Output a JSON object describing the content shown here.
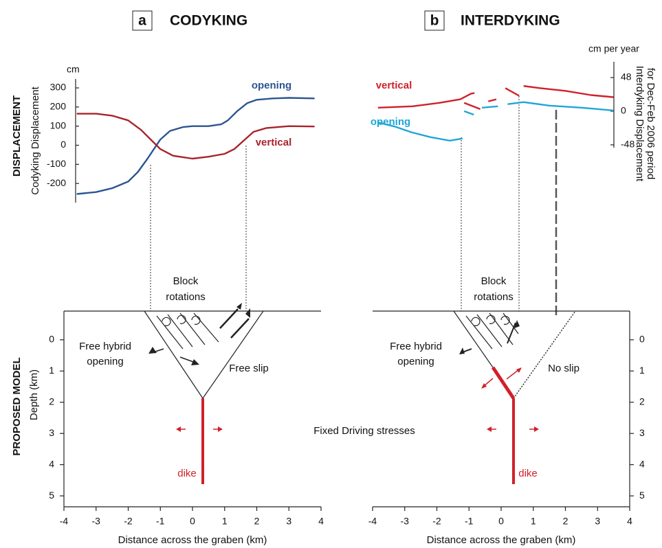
{
  "chart_data": [
    {
      "type": "line",
      "panel": "a",
      "title": "CODYKING",
      "section": "DISPLACEMENT",
      "y_unit": "cm",
      "y_label": "Codyking Displacement",
      "xlim": [
        -4,
        4
      ],
      "ylim": [
        -300,
        300
      ],
      "yticks": [
        300,
        200,
        100,
        0,
        -100,
        -200
      ],
      "series": [
        {
          "name": "opening",
          "color": "#2b5592",
          "x": [
            -3.6,
            -3,
            -2.5,
            -2,
            -1.7,
            -1.4,
            -1.2,
            -1,
            -0.7,
            -0.3,
            0,
            0.5,
            0.9,
            1.1,
            1.4,
            1.7,
            2,
            2.5,
            3,
            3.8
          ],
          "values": [
            -255,
            -245,
            -225,
            -190,
            -140,
            -70,
            -20,
            30,
            75,
            95,
            100,
            100,
            110,
            130,
            180,
            220,
            238,
            245,
            248,
            245
          ]
        },
        {
          "name": "vertical",
          "color": "#a8232b",
          "x": [
            -3.6,
            -3,
            -2.5,
            -2,
            -1.6,
            -1.3,
            -1,
            -0.6,
            0,
            0.5,
            1,
            1.3,
            1.6,
            1.9,
            2.3,
            3,
            3.8
          ],
          "values": [
            165,
            165,
            155,
            130,
            80,
            30,
            -20,
            -55,
            -70,
            -60,
            -45,
            -20,
            25,
            70,
            90,
            100,
            98
          ]
        }
      ]
    },
    {
      "type": "line",
      "panel": "b",
      "title": "INTERDYKING",
      "y_unit": "cm per year",
      "y_label": [
        "Interdyking Displacement",
        "for Dec-Feb 2006 period"
      ],
      "y_side": "right",
      "xlim": [
        -4,
        4
      ],
      "ylim": [
        -52,
        70
      ],
      "yticks": [
        48,
        0,
        -48
      ],
      "series": [
        {
          "name": "vertical",
          "color": "#d0202a",
          "x": [
            -3.83,
            -2.76,
            -1.91,
            -1.27,
            -0.94,
            -0.83,
            null,
            -1.15,
            -0.65,
            null,
            -0.4,
            -0.15,
            null,
            0.13,
            0.56,
            null,
            0.7,
            1.2,
            2,
            2.8,
            3.5
          ],
          "values": [
            5,
            7,
            12,
            17,
            25,
            26,
            null,
            12,
            3,
            null,
            14,
            17,
            null,
            33,
            22,
            null,
            36,
            33,
            29,
            23,
            20
          ]
        },
        {
          "name": "opening",
          "color": "#1fa6d6",
          "x": [
            -3.83,
            -3.3,
            -2.8,
            -2.2,
            -1.6,
            -1.2,
            null,
            -1.15,
            -0.85,
            null,
            -0.6,
            -0.1,
            null,
            0.2,
            0.7,
            1.5,
            2.5,
            3.5
          ],
          "values": [
            -16,
            -22,
            -30,
            -37,
            -42,
            -39,
            null,
            0,
            -5,
            null,
            5,
            7,
            null,
            10,
            13,
            8,
            5,
            1
          ]
        }
      ]
    },
    {
      "type": "diagram",
      "section": "PROPOSED MODEL",
      "y_label": "Depth (km)",
      "x_label": "Distance across the graben (km)",
      "y_side": "left",
      "xlim": [
        -4,
        4
      ],
      "xticks": [
        -4,
        -3,
        -2,
        -1,
        0,
        1,
        2,
        3,
        4
      ],
      "ylim": [
        -0.92,
        5.35
      ],
      "yticks": [
        0,
        1,
        2,
        3,
        4,
        5
      ],
      "annotations": [
        "Block",
        "rotations",
        "Free hybrid",
        "opening",
        "Free slip",
        "dike",
        "Fixed Driving stresses"
      ]
    },
    {
      "type": "diagram",
      "x_label": "Distance across the graben (km)",
      "y_side": "right",
      "xlim": [
        -4,
        4
      ],
      "xticks": [
        -4,
        -3,
        -2,
        -1,
        0,
        1,
        2,
        3,
        4
      ],
      "ylim": [
        -0.92,
        5.35
      ],
      "yticks": [
        0,
        1,
        2,
        3,
        4,
        5
      ],
      "annotations": [
        "Block",
        "rotations",
        "Free hybrid",
        "opening",
        "No slip",
        "dike"
      ]
    }
  ]
}
